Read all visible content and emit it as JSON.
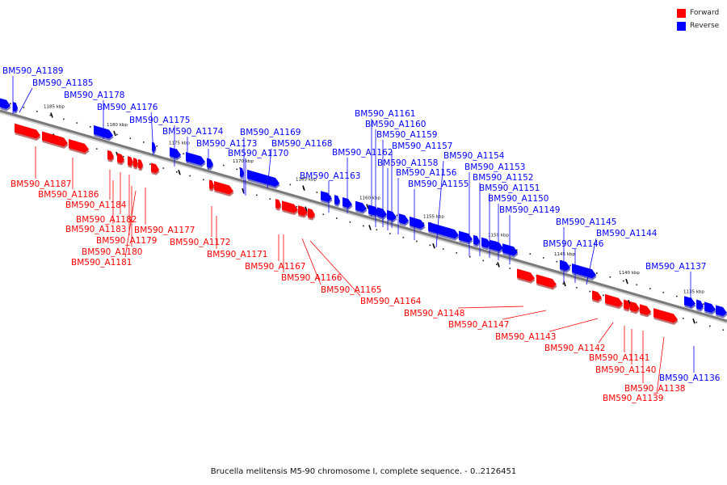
{
  "caption": "Brucella melitensis M5-90 chromosome I, complete sequence. - 0..2126451",
  "legend": [
    {
      "label": "Forward",
      "color": "#ff0000"
    },
    {
      "label": "Reverse",
      "color": "#0000ff"
    }
  ],
  "colors": {
    "forward": "#ff0000",
    "reverse": "#0000ff",
    "backbone": "#7a7a7a"
  },
  "ticks": [
    "1185 kbp",
    "1180 kbp",
    "1175 kbp",
    "1170 kbp",
    "1165 kbp",
    "1160 kbp",
    "1155 kbp",
    "1150 kbp",
    "1145 kbp",
    "1140 kbp",
    "1135 kbp"
  ],
  "forward_genes": [
    "BM590_A1187",
    "BM590_A1186",
    "BM590_A1184",
    "BM590_A1182",
    "BM590_A1183",
    "BM590_A1179",
    "BM590_A1180",
    "BM590_A1181",
    "BM590_A1177",
    "BM590_A1172",
    "BM590_A1171",
    "BM590_A1167",
    "BM590_A1166",
    "BM590_A1165",
    "BM590_A1164",
    "BM590_A1148",
    "BM590_A1147",
    "BM590_A1143",
    "BM590_A1142",
    "BM590_A1141",
    "BM590_A1140",
    "BM590_A1138",
    "BM590_A1139"
  ],
  "reverse_genes": [
    "BM590_A1189",
    "BM590_A1185",
    "BM590_A1178",
    "BM590_A1176",
    "BM590_A1175",
    "BM590_A1174",
    "BM590_A1173",
    "BM590_A1169",
    "BM590_A1168",
    "BM590_A1170",
    "BM590_A1161",
    "BM590_A1160",
    "BM590_A1159",
    "BM590_A1157",
    "BM590_A1162",
    "BM590_A1158",
    "BM590_A1156",
    "BM590_A1155",
    "BM590_A1163",
    "BM590_A1154",
    "BM590_A1153",
    "BM590_A1152",
    "BM590_A1151",
    "BM590_A1150",
    "BM590_A1149",
    "BM590_A1145",
    "BM590_A1146",
    "BM590_A1144",
    "BM590_A1137",
    "BM590_A1136"
  ]
}
